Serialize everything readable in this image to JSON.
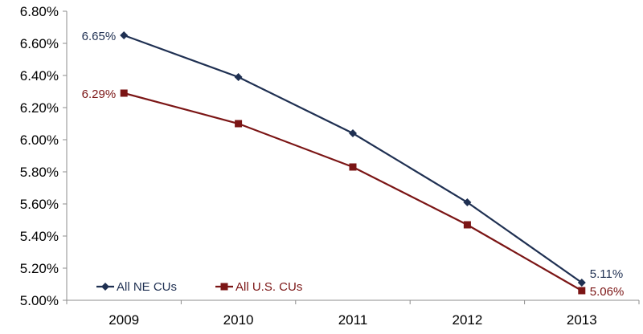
{
  "chart_data": {
    "type": "line",
    "categories": [
      "2009",
      "2010",
      "2011",
      "2012",
      "2013"
    ],
    "series": [
      {
        "name": "All NE CUs",
        "values": [
          6.65,
          6.39,
          6.04,
          5.61,
          5.11
        ],
        "color": "#1f3052",
        "marker": "diamond"
      },
      {
        "name": "All U.S. CUs",
        "values": [
          6.29,
          6.1,
          5.83,
          5.47,
          5.06
        ],
        "color": "#7b1515",
        "marker": "square"
      }
    ],
    "data_labels": [
      {
        "series": 0,
        "index": 0,
        "text": "6.65%"
      },
      {
        "series": 1,
        "index": 0,
        "text": "6.29%"
      },
      {
        "series": 0,
        "index": 4,
        "text": "5.11%"
      },
      {
        "series": 1,
        "index": 4,
        "text": "5.06%"
      }
    ],
    "ylim": [
      5.0,
      6.8
    ],
    "yticks": [
      "5.00%",
      "5.20%",
      "5.40%",
      "5.60%",
      "5.80%",
      "6.00%",
      "6.20%",
      "6.40%",
      "6.60%",
      "6.80%"
    ],
    "legend_placement": "bottom-left",
    "grid": false
  }
}
